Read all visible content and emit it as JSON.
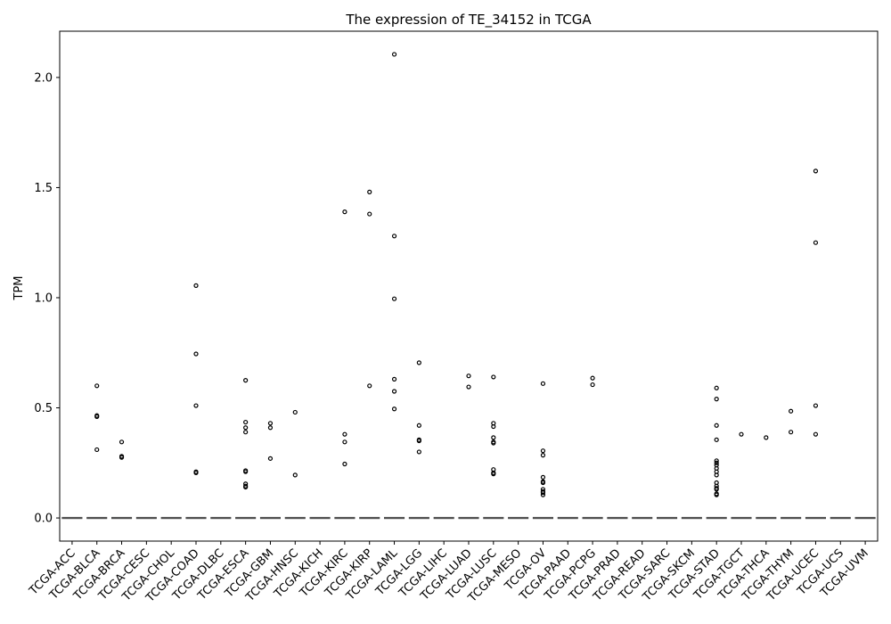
{
  "chart_data": {
    "type": "box",
    "title": "The expression of TE_34152 in TCGA",
    "xlabel": "",
    "ylabel": "TPM",
    "ylim": [
      -0.105,
      2.21
    ],
    "yticks": [
      0.0,
      0.5,
      1.0,
      1.5,
      2.0
    ],
    "ytick_labels": [
      "0.0",
      "0.5",
      "1.0",
      "1.5",
      "2.0"
    ],
    "grid": false,
    "categories": [
      "TCGA-ACC",
      "TCGA-BLCA",
      "TCGA-BRCA",
      "TCGA-CESC",
      "TCGA-CHOL",
      "TCGA-COAD",
      "TCGA-DLBC",
      "TCGA-ESCA",
      "TCGA-GBM",
      "TCGA-HNSC",
      "TCGA-KICH",
      "TCGA-KIRC",
      "TCGA-KIRP",
      "TCGA-LAML",
      "TCGA-LGG",
      "TCGA-LIHC",
      "TCGA-LUAD",
      "TCGA-LUSC",
      "TCGA-MESO",
      "TCGA-OV",
      "TCGA-PAAD",
      "TCGA-PCPG",
      "TCGA-PRAD",
      "TCGA-READ",
      "TCGA-SARC",
      "TCGA-SKCM",
      "TCGA-STAD",
      "TCGA-TGCT",
      "TCGA-THCA",
      "TCGA-THYM",
      "TCGA-UCEC",
      "TCGA-UCS",
      "TCGA-UVM"
    ],
    "median": 0.0,
    "outliers": [
      [],
      [
        0.6,
        0.465,
        0.46,
        0.31
      ],
      [
        0.345,
        0.28,
        0.275
      ],
      [],
      [],
      [
        1.055,
        0.745,
        0.51,
        0.21,
        0.205
      ],
      [],
      [
        0.625,
        0.435,
        0.41,
        0.39,
        0.215,
        0.21,
        0.155,
        0.145,
        0.14
      ],
      [
        0.43,
        0.41,
        0.27
      ],
      [
        0.48,
        0.195
      ],
      [],
      [
        1.39,
        0.38,
        0.345,
        0.245
      ],
      [
        1.48,
        1.38,
        0.6
      ],
      [
        2.105,
        1.28,
        0.995,
        0.63,
        0.575,
        0.495
      ],
      [
        0.705,
        0.42,
        0.355,
        0.35,
        0.3
      ],
      [],
      [
        0.645,
        0.595
      ],
      [
        0.64,
        0.43,
        0.415,
        0.365,
        0.345,
        0.34,
        0.22,
        0.205,
        0.2
      ],
      [],
      [
        0.61,
        0.305,
        0.285,
        0.185,
        0.165,
        0.16,
        0.13,
        0.12,
        0.115,
        0.105
      ],
      [],
      [
        0.635,
        0.605
      ],
      [],
      [],
      [],
      [],
      [
        0.59,
        0.54,
        0.42,
        0.355,
        0.26,
        0.25,
        0.24,
        0.225,
        0.21,
        0.195,
        0.16,
        0.145,
        0.135,
        0.13,
        0.11,
        0.105
      ],
      [
        0.38
      ],
      [
        0.365
      ],
      [
        0.485,
        0.39
      ],
      [
        1.575,
        1.25,
        0.51,
        0.38
      ],
      [],
      []
    ],
    "box_color": "#4c72b0",
    "median_color": "#555555"
  }
}
